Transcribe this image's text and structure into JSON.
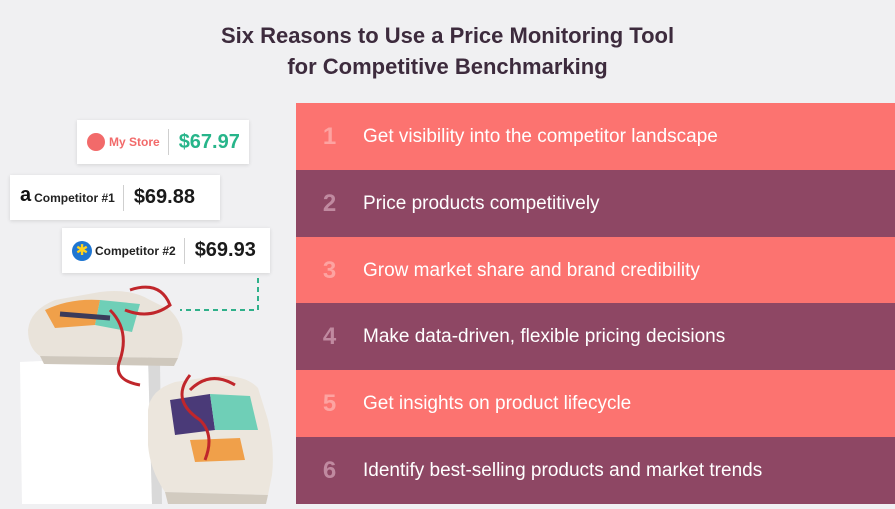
{
  "title": {
    "line1": "Six Reasons to Use a Price Monitoring Tool",
    "line2": "for Competitive Benchmarking"
  },
  "price_cards": {
    "my_store": {
      "name": "My Store",
      "price": "$67.97"
    },
    "competitor_1": {
      "name": "Competitor #1",
      "price": "$69.88",
      "icon": "amazon-icon"
    },
    "competitor_2": {
      "name": "Competitor #2",
      "price": "$69.93",
      "icon": "walmart-icon"
    }
  },
  "reasons": [
    {
      "num": "1",
      "text": "Get visibility into the competitor landscape"
    },
    {
      "num": "2",
      "text": "Price products competitively"
    },
    {
      "num": "3",
      "text": "Grow market share and brand credibility"
    },
    {
      "num": "4",
      "text": "Make data-driven, flexible pricing decisions"
    },
    {
      "num": "5",
      "text": "Get insights on product lifecycle"
    },
    {
      "num": "6",
      "text": "Identify best-selling products and market trends"
    }
  ],
  "colors": {
    "salmon": "#fc7370",
    "plum": "#8e4764",
    "title": "#3d2b3d",
    "my_store_red": "#f26a6a",
    "my_store_price_green": "#27b58a",
    "dashed_line": "#2fb08a"
  }
}
